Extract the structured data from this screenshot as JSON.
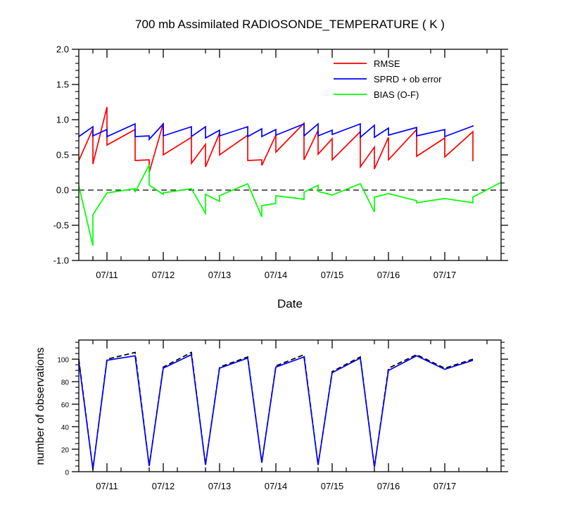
{
  "chart_data": [
    {
      "type": "line",
      "title": "700 mb Assimilated RADIOSONDE_TEMPERATURE ( K )",
      "xlabel": "Date",
      "ylabel": "",
      "x_ticks": [
        "07/11",
        "07/12",
        "07/13",
        "07/14",
        "07/15",
        "07/16",
        "07/17"
      ],
      "y_ticks": [
        "2.0",
        "1.5",
        "1.0",
        "0.5",
        "0.0",
        "-0.5",
        "-1.0"
      ],
      "ylim": [
        -1.0,
        2.0
      ],
      "legend_position": "top-right",
      "zero_line": {
        "value": 0.0,
        "style": "dashed"
      },
      "series": [
        {
          "name": "RMSE",
          "color": "#ff0000",
          "points": [
            [
              10.0,
              0.42
            ],
            [
              10.25,
              0.87
            ],
            [
              10.25,
              0.37
            ],
            [
              10.5,
              1.18
            ],
            [
              10.5,
              0.64
            ],
            [
              11.0,
              0.86
            ],
            [
              11.0,
              0.42
            ],
            [
              11.25,
              0.43
            ],
            [
              11.25,
              0.25
            ],
            [
              11.5,
              0.95
            ],
            [
              11.5,
              0.5
            ],
            [
              12.0,
              0.75
            ],
            [
              12.0,
              0.38
            ],
            [
              12.25,
              0.65
            ],
            [
              12.25,
              0.33
            ],
            [
              12.5,
              0.81
            ],
            [
              12.5,
              0.5
            ],
            [
              13.0,
              0.78
            ],
            [
              13.0,
              0.42
            ],
            [
              13.25,
              0.43
            ],
            [
              13.25,
              0.35
            ],
            [
              13.5,
              0.78
            ],
            [
              13.5,
              0.54
            ],
            [
              14.0,
              0.95
            ],
            [
              14.0,
              0.43
            ],
            [
              14.25,
              0.85
            ],
            [
              14.25,
              0.51
            ],
            [
              14.5,
              0.73
            ],
            [
              14.5,
              0.43
            ],
            [
              15.0,
              0.83
            ],
            [
              15.0,
              0.33
            ],
            [
              15.25,
              0.61
            ],
            [
              15.25,
              0.3
            ],
            [
              15.5,
              0.75
            ],
            [
              15.5,
              0.43
            ],
            [
              16.0,
              0.86
            ],
            [
              16.0,
              0.48
            ],
            [
              16.5,
              0.74
            ],
            [
              16.5,
              0.47
            ],
            [
              17.0,
              0.83
            ],
            [
              17.0,
              0.41
            ]
          ]
        },
        {
          "name": "SPRD + ob error",
          "color": "#0000ff",
          "points": [
            [
              10.0,
              0.76
            ],
            [
              10.25,
              0.9
            ],
            [
              10.25,
              0.77
            ],
            [
              10.5,
              0.86
            ],
            [
              10.5,
              0.76
            ],
            [
              11.0,
              0.94
            ],
            [
              11.0,
              0.76
            ],
            [
              11.25,
              0.77
            ],
            [
              11.25,
              0.72
            ],
            [
              11.5,
              0.94
            ],
            [
              11.5,
              0.77
            ],
            [
              12.0,
              0.9
            ],
            [
              12.0,
              0.76
            ],
            [
              12.25,
              0.9
            ],
            [
              12.25,
              0.74
            ],
            [
              12.5,
              0.85
            ],
            [
              12.5,
              0.77
            ],
            [
              13.0,
              0.9
            ],
            [
              13.0,
              0.76
            ],
            [
              13.25,
              0.87
            ],
            [
              13.25,
              0.76
            ],
            [
              13.5,
              0.86
            ],
            [
              13.5,
              0.78
            ],
            [
              14.0,
              0.94
            ],
            [
              14.0,
              0.77
            ],
            [
              14.25,
              0.94
            ],
            [
              14.25,
              0.77
            ],
            [
              14.5,
              0.85
            ],
            [
              14.5,
              0.79
            ],
            [
              15.0,
              0.94
            ],
            [
              15.0,
              0.75
            ],
            [
              15.25,
              0.92
            ],
            [
              15.25,
              0.75
            ],
            [
              15.5,
              0.88
            ],
            [
              15.5,
              0.78
            ],
            [
              16.0,
              0.89
            ],
            [
              16.0,
              0.77
            ],
            [
              16.5,
              0.86
            ],
            [
              16.5,
              0.76
            ],
            [
              17.0,
              0.91
            ],
            [
              17.0,
              0.9
            ]
          ]
        },
        {
          "name": "BIAS (O-F)",
          "color": "#00ff00",
          "points": [
            [
              10.0,
              0.06
            ],
            [
              10.25,
              -0.79
            ],
            [
              10.25,
              -0.35
            ],
            [
              10.5,
              -0.04
            ],
            [
              11.0,
              0.02
            ],
            [
              11.0,
              -0.03
            ],
            [
              11.25,
              0.36
            ],
            [
              11.25,
              0.07
            ],
            [
              11.5,
              -0.06
            ],
            [
              11.5,
              -0.04
            ],
            [
              12.0,
              0.02
            ],
            [
              12.25,
              -0.33
            ],
            [
              12.25,
              -0.06
            ],
            [
              12.5,
              -0.16
            ],
            [
              12.5,
              -0.08
            ],
            [
              13.0,
              0.09
            ],
            [
              13.25,
              -0.38
            ],
            [
              13.25,
              -0.22
            ],
            [
              13.5,
              -0.19
            ],
            [
              13.5,
              -0.08
            ],
            [
              14.0,
              -0.13
            ],
            [
              14.0,
              -0.03
            ],
            [
              14.25,
              0.07
            ],
            [
              14.25,
              -0.02
            ],
            [
              14.5,
              -0.07
            ],
            [
              15.0,
              0.09
            ],
            [
              15.25,
              -0.31
            ],
            [
              15.25,
              -0.1
            ],
            [
              15.5,
              -0.05
            ],
            [
              16.0,
              -0.15
            ],
            [
              16.0,
              -0.18
            ],
            [
              16.5,
              -0.12
            ],
            [
              16.5,
              -0.12
            ],
            [
              17.0,
              -0.18
            ],
            [
              17.0,
              -0.1
            ],
            [
              17.5,
              0.11
            ]
          ]
        }
      ]
    },
    {
      "type": "line",
      "title": "",
      "xlabel": "",
      "ylabel": "number of observations",
      "x_ticks": [
        "07/11",
        "07/12",
        "07/13",
        "07/14",
        "07/15",
        "07/16",
        "07/17"
      ],
      "y_ticks": [
        "100",
        "80",
        "60",
        "40",
        "20",
        "0"
      ],
      "ylim": [
        0,
        117
      ],
      "series": [
        {
          "color": "#000000",
          "style": "dashed",
          "points": [
            [
              10.0,
              100
            ],
            [
              10.25,
              2
            ],
            [
              10.5,
              100
            ],
            [
              11.0,
              106
            ],
            [
              11.25,
              5
            ],
            [
              11.5,
              93
            ],
            [
              12.0,
              106
            ],
            [
              12.25,
              6
            ],
            [
              12.5,
              93
            ],
            [
              13.0,
              102
            ],
            [
              13.25,
              8
            ],
            [
              13.5,
              94
            ],
            [
              14.0,
              104
            ],
            [
              14.25,
              6
            ],
            [
              14.5,
              89
            ],
            [
              15.0,
              102
            ],
            [
              15.25,
              4
            ],
            [
              15.5,
              92
            ],
            [
              16.0,
              104
            ],
            [
              16.5,
              92
            ],
            [
              17.0,
              100
            ]
          ]
        },
        {
          "color": "#0000ff",
          "style": "solid",
          "points": [
            [
              10.0,
              98
            ],
            [
              10.25,
              2
            ],
            [
              10.5,
              99
            ],
            [
              11.0,
              103
            ],
            [
              11.25,
              5
            ],
            [
              11.5,
              92
            ],
            [
              12.0,
              104
            ],
            [
              12.25,
              6
            ],
            [
              12.5,
              92
            ],
            [
              13.0,
              101
            ],
            [
              13.25,
              8
            ],
            [
              13.5,
              93
            ],
            [
              14.0,
              102
            ],
            [
              14.25,
              6
            ],
            [
              14.5,
              88
            ],
            [
              15.0,
              101
            ],
            [
              15.25,
              4
            ],
            [
              15.5,
              90
            ],
            [
              16.0,
              103
            ],
            [
              16.5,
              91
            ],
            [
              17.0,
              99
            ]
          ]
        }
      ]
    }
  ]
}
